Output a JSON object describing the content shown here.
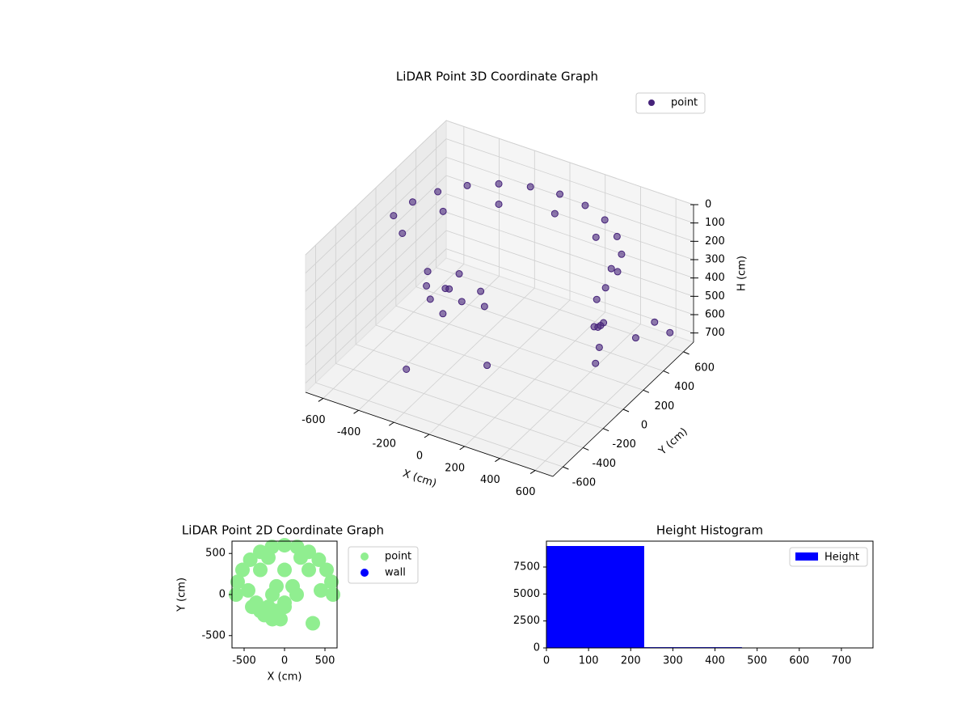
{
  "chart_data": [
    {
      "type": "scatter3d",
      "title": "LiDAR Point 3D Coordinate Graph",
      "xlabel": "X (cm)",
      "ylabel": "Y (cm)",
      "zlabel": "H (cm)",
      "xlim": [
        -700,
        700
      ],
      "ylim": [
        -700,
        700
      ],
      "zlim": [
        750,
        0
      ],
      "xticks": [
        -600,
        -400,
        -200,
        0,
        200,
        400,
        600
      ],
      "yticks": [
        -600,
        -400,
        -200,
        0,
        200,
        400,
        600
      ],
      "zticks": [
        0,
        100,
        200,
        300,
        400,
        500,
        600,
        700
      ],
      "grid": true,
      "legend": "upper right",
      "alpha": 0.6,
      "series": [
        {
          "name": "point",
          "color": "#46237a",
          "x": [
            600,
            580,
            520,
            424,
            300,
            155,
            0,
            -155,
            -300,
            -424,
            -520,
            -580,
            -600,
            550,
            476,
            275,
            0,
            -275,
            -476,
            -550,
            600,
            610,
            600,
            560,
            500,
            450,
            -300,
            -250,
            -200,
            -150,
            -100,
            -350,
            -50,
            -200,
            0,
            -250,
            -300,
            100,
            650,
            680,
            600
          ],
          "y": [
            0,
            155,
            300,
            424,
            520,
            580,
            600,
            580,
            520,
            424,
            300,
            155,
            0,
            0,
            275,
            476,
            550,
            476,
            275,
            0,
            -50,
            -80,
            -100,
            50,
            100,
            150,
            -200,
            -250,
            -150,
            -300,
            -200,
            -100,
            -100,
            -50,
            -150,
            -100,
            -400,
            -300,
            400,
            500,
            300
          ],
          "z": [
            120,
            120,
            120,
            120,
            120,
            120,
            120,
            120,
            120,
            120,
            120,
            120,
            120,
            200,
            200,
            200,
            200,
            200,
            200,
            200,
            300,
            400,
            480,
            350,
            420,
            460,
            300,
            330,
            310,
            350,
            320,
            290,
            300,
            280,
            340,
            350,
            650,
            550,
            500,
            600,
            550
          ]
        }
      ]
    },
    {
      "type": "scatter",
      "title": "LiDAR Point 2D Coordinate Graph",
      "xlabel": "X (cm)",
      "ylabel": "Y (cm)",
      "xlim": [
        -650,
        650
      ],
      "ylim": [
        -650,
        650
      ],
      "xticks": [
        -500,
        0,
        500
      ],
      "yticks": [
        -500,
        0,
        500
      ],
      "legend": "outside right",
      "series": [
        {
          "name": "point",
          "color": "#90ee90",
          "x": [
            600,
            580,
            520,
            424,
            300,
            155,
            0,
            -155,
            -300,
            -424,
            -520,
            -580,
            -600,
            0,
            300,
            -300,
            200,
            -200,
            100,
            -100,
            150,
            -150,
            -450,
            450,
            0,
            -300,
            -250,
            -200,
            -150,
            -100,
            -350,
            -50,
            0,
            350,
            -400
          ],
          "y": [
            0,
            155,
            300,
            424,
            520,
            580,
            600,
            580,
            520,
            424,
            300,
            155,
            0,
            300,
            300,
            300,
            450,
            450,
            100,
            100,
            0,
            0,
            50,
            50,
            -100,
            -200,
            -250,
            -150,
            -300,
            -200,
            -100,
            -300,
            -150,
            -350,
            -150
          ]
        },
        {
          "name": "wall",
          "color": "#0000ff",
          "x": [],
          "y": []
        }
      ]
    },
    {
      "type": "histogram",
      "title": "Height Histogram",
      "xlim": [
        0,
        775
      ],
      "ylim": [
        0,
        9900
      ],
      "xticks": [
        0,
        100,
        200,
        300,
        400,
        500,
        600,
        700
      ],
      "yticks": [
        0,
        2500,
        5000,
        7500
      ],
      "legend": "upper right",
      "series": [
        {
          "name": "Height",
          "color": "#0000ff",
          "bins": [
            0,
            232,
            464,
            696
          ],
          "values": [
            9450,
            70,
            10
          ]
        }
      ]
    }
  ]
}
